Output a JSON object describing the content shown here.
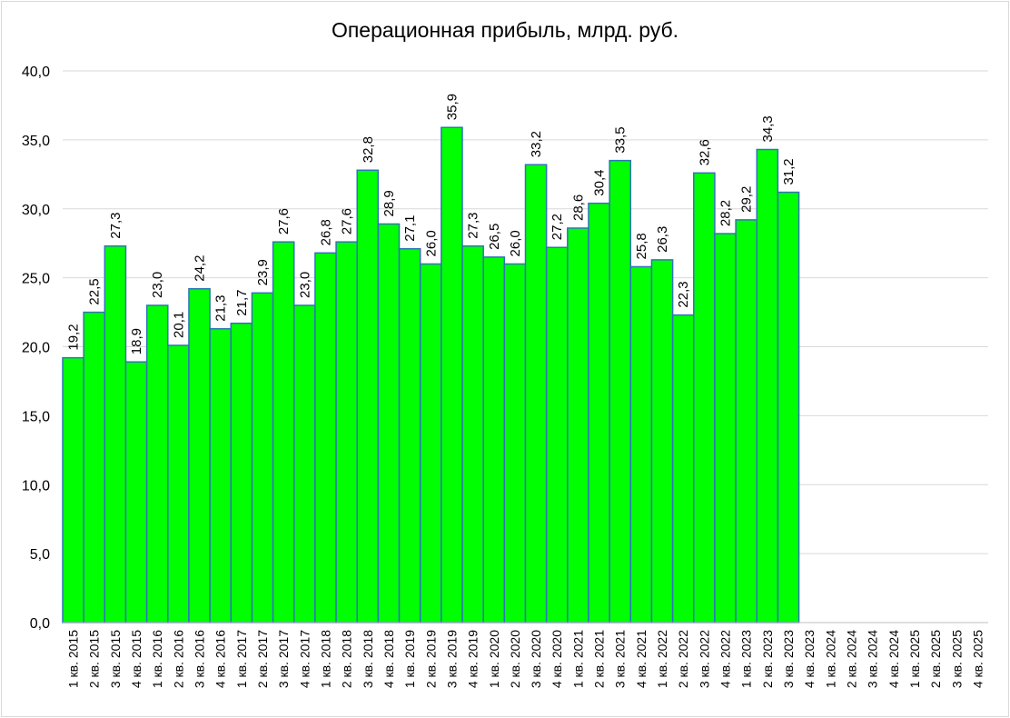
{
  "chart_data": {
    "type": "bar",
    "title": "Операционная прибыль, млрд. руб.",
    "xlabel": "",
    "ylabel": "",
    "ylim": [
      0,
      40
    ],
    "yticks": [
      "0,0",
      "5,0",
      "10,0",
      "15,0",
      "20,0",
      "25,0",
      "30,0",
      "35,0",
      "40,0"
    ],
    "grid": true,
    "bar_color": "#00ff00",
    "bar_edge_color": "#2e75b6",
    "categories": [
      "1 кв. 2015",
      "2 кв. 2015",
      "3 кв. 2015",
      "4 кв. 2015",
      "1 кв. 2016",
      "2 кв. 2016",
      "3 кв. 2016",
      "4 кв. 2016",
      "1 кв. 2017",
      "2 кв. 2017",
      "3 кв. 2017",
      "4 кв. 2017",
      "1 кв. 2018",
      "2 кв. 2018",
      "3 кв. 2018",
      "4 кв. 2018",
      "1 кв. 2019",
      "2 кв. 2019",
      "3 кв. 2019",
      "4 кв. 2019",
      "1 кв. 2020",
      "2 кв. 2020",
      "3 кв. 2020",
      "4 кв. 2020",
      "1 кв. 2021",
      "2 кв. 2021",
      "3 кв. 2021",
      "4 кв. 2021",
      "1 кв. 2022",
      "2 кв. 2022",
      "3 кв. 2022",
      "4 кв. 2022",
      "1 кв. 2023",
      "2 кв. 2023",
      "3 кв. 2023",
      "4 кв. 2023",
      "1 кв. 2024",
      "2 кв. 2024",
      "3 кв. 2024",
      "4 кв. 2024",
      "1 кв. 2025",
      "2 кв. 2025",
      "3 кв. 2025",
      "4 кв. 2025"
    ],
    "values": [
      19.2,
      22.5,
      27.3,
      18.9,
      23.0,
      20.1,
      24.2,
      21.3,
      21.7,
      23.9,
      27.6,
      23.0,
      26.8,
      27.6,
      32.8,
      28.9,
      27.1,
      26.0,
      35.9,
      27.3,
      26.5,
      26.0,
      33.2,
      27.2,
      28.6,
      30.4,
      33.5,
      25.8,
      26.3,
      22.3,
      32.6,
      28.2,
      29.2,
      34.3,
      31.2,
      null,
      null,
      null,
      null,
      null,
      null,
      null,
      null,
      null
    ],
    "data_labels": [
      "19,2",
      "22,5",
      "27,3",
      "18,9",
      "23,0",
      "20,1",
      "24,2",
      "21,3",
      "21,7",
      "23,9",
      "27,6",
      "23,0",
      "26,8",
      "27,6",
      "32,8",
      "28,9",
      "27,1",
      "26,0",
      "35,9",
      "27,3",
      "26,5",
      "26,0",
      "33,2",
      "27,2",
      "28,6",
      "30,4",
      "33,5",
      "25,8",
      "26,3",
      "22,3",
      "32,6",
      "28,2",
      "29,2",
      "34,3",
      "31,2",
      null,
      null,
      null,
      null,
      null,
      null,
      null,
      null,
      null
    ]
  }
}
